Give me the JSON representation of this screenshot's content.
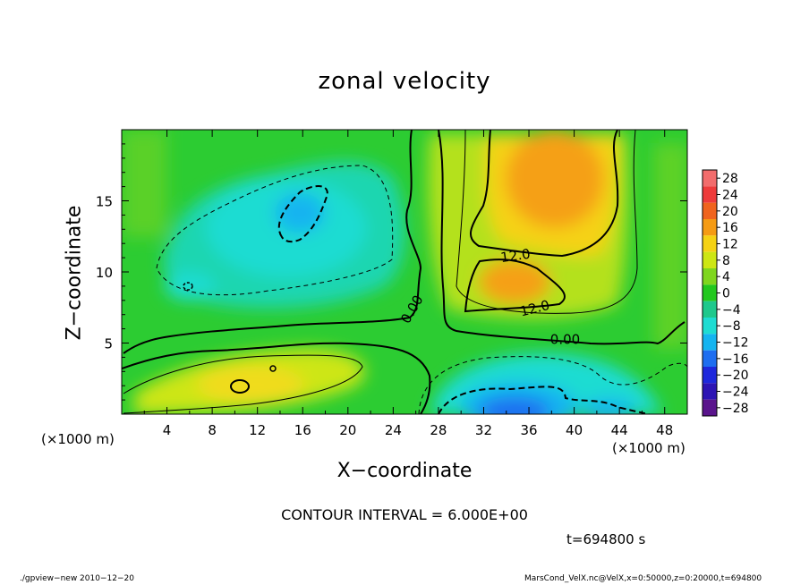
{
  "chart_data": {
    "type": "heatmap",
    "title": "zonal velocity",
    "xlabel": "X−coordinate",
    "ylabel": "Z−coordinate",
    "x_unit": "(×1000 m)",
    "x_ticks": [
      4,
      8,
      12,
      16,
      20,
      24,
      28,
      32,
      36,
      40,
      44,
      48
    ],
    "y_ticks": [
      5,
      10,
      15
    ],
    "xlim": [
      0,
      50
    ],
    "ylim": [
      0,
      20
    ],
    "colorbar": {
      "levels": [
        28,
        24,
        20,
        16,
        12,
        8,
        4,
        0,
        -4,
        -8,
        -12,
        -16,
        -20,
        -24,
        -28
      ],
      "labels": [
        "28",
        "24",
        "20",
        "16",
        "12",
        "8",
        "4",
        "0",
        "−4",
        "−8",
        "−12",
        "−16",
        "−20",
        "−24",
        "−28"
      ],
      "colors": [
        "#f26c6c",
        "#ee3b3b",
        "#f0641e",
        "#f59b14",
        "#f5d214",
        "#cde614",
        "#7fd61e",
        "#22c81e",
        "#1ec88c",
        "#1edcd2",
        "#14b4f0",
        "#1e6ef0",
        "#1e28dc",
        "#2d14b4",
        "#5a148c"
      ]
    },
    "contour_labels": [
      "12.0",
      "12.0",
      "0.00",
      "0.00"
    ],
    "contour_interval": "CONTOUR INTERVAL = 6.000E+00",
    "time": "t=694800 s",
    "features": [
      {
        "kind": "jet-max",
        "x": 36,
        "z": 15,
        "u": 14
      },
      {
        "kind": "jet-max",
        "x": 37,
        "z": 17.5,
        "u": 14
      },
      {
        "kind": "jet-max",
        "x": 33,
        "z": 9,
        "u": 14
      },
      {
        "kind": "jet-min",
        "x": 15,
        "z": 14,
        "u": -9
      },
      {
        "kind": "jet-min",
        "x": 6,
        "z": 9,
        "u": -7
      },
      {
        "kind": "jet-min",
        "x": 35,
        "z": 1,
        "u": -14
      },
      {
        "kind": "jet-min",
        "x": 43,
        "z": 0.5,
        "u": -8
      },
      {
        "kind": "jet-max",
        "x": 14,
        "z": 2.5,
        "u": 9
      },
      {
        "kind": "jet-max",
        "x": 20,
        "z": 3,
        "u": 8
      }
    ]
  },
  "footer": {
    "left": "./gpview−new   2010−12−20",
    "right": "MarsCond_VelX.nc@VelX,x=0:50000,z=0:20000,t=694800"
  }
}
